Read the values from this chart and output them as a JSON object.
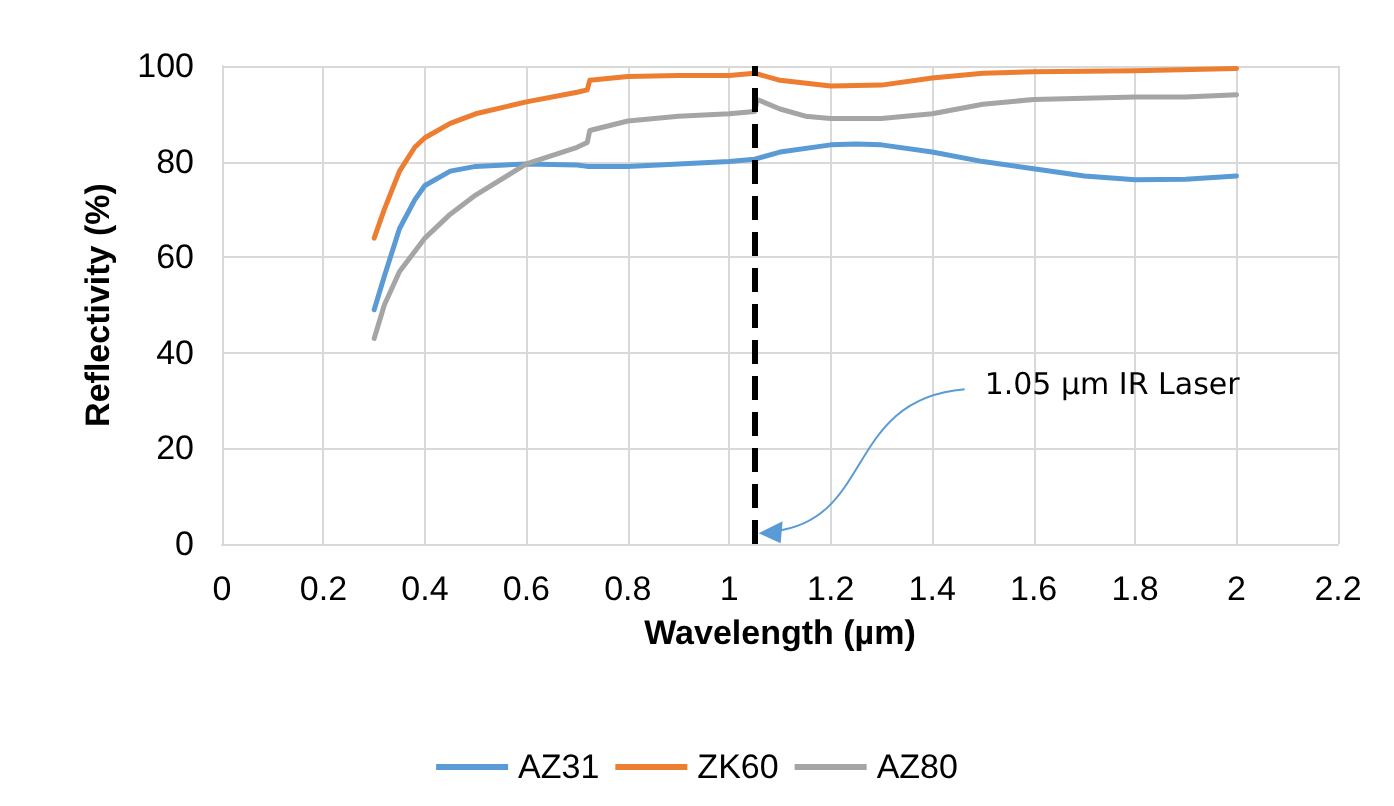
{
  "chart_data": {
    "type": "line",
    "xlabel": "Wavelength (µm)",
    "ylabel": "Reflectivity (%)",
    "xlim": [
      0,
      2.2
    ],
    "xticks": [
      0,
      0.2,
      0.4,
      0.6,
      0.8,
      1,
      1.2,
      1.4,
      1.6,
      1.8,
      2,
      2.2
    ],
    "ylim": [
      0,
      100
    ],
    "yticks": [
      0,
      20,
      40,
      60,
      80,
      100
    ],
    "grid": true,
    "legend": "bottom",
    "marker": "none",
    "line_style": "solid",
    "series": [
      {
        "name": "AZ31",
        "color": "#5b9bd5",
        "x": [
          0.3,
          0.32,
          0.35,
          0.38,
          0.4,
          0.45,
          0.5,
          0.6,
          0.7,
          0.72,
          0.8,
          0.9,
          1.0,
          1.05,
          1.1,
          1.2,
          1.25,
          1.3,
          1.4,
          1.5,
          1.6,
          1.7,
          1.8,
          1.9,
          2.0
        ],
        "values": [
          49,
          56,
          66,
          72,
          75,
          78,
          79,
          79.5,
          79.3,
          79,
          79,
          79.5,
          80,
          80.5,
          82,
          83.5,
          83.7,
          83.5,
          82,
          80,
          78.5,
          77,
          76.2,
          76.3,
          77
        ]
      },
      {
        "name": "ZK60",
        "color": "#ed7d31",
        "x": [
          0.3,
          0.32,
          0.35,
          0.38,
          0.4,
          0.45,
          0.5,
          0.6,
          0.7,
          0.72,
          0.725,
          0.8,
          0.9,
          1.0,
          1.05,
          1.1,
          1.2,
          1.3,
          1.4,
          1.5,
          1.6,
          1.8,
          2.0
        ],
        "values": [
          64,
          70,
          78,
          83,
          85,
          88,
          90,
          92.5,
          94.5,
          95,
          97,
          97.8,
          98,
          98,
          98.5,
          97,
          95.8,
          96,
          97.5,
          98.5,
          98.8,
          99,
          99.5
        ]
      },
      {
        "name": "AZ80",
        "color": "#a5a5a5",
        "x": [
          0.3,
          0.32,
          0.35,
          0.4,
          0.45,
          0.5,
          0.6,
          0.7,
          0.72,
          0.725,
          0.8,
          0.9,
          1.0,
          1.05,
          1.055,
          1.1,
          1.15,
          1.2,
          1.3,
          1.4,
          1.5,
          1.6,
          1.8,
          1.9,
          2.0
        ],
        "values": [
          43,
          50,
          57,
          64,
          69,
          73,
          79.5,
          83,
          84,
          86.5,
          88.5,
          89.5,
          90,
          90.5,
          93,
          91,
          89.5,
          89,
          89,
          90,
          92,
          93,
          93.5,
          93.5,
          94
        ]
      }
    ],
    "ref_lines": [
      {
        "axis": "x",
        "value": 1.05,
        "color": "#000000",
        "line_style": "dashed"
      }
    ],
    "annotations": [
      "1.05 µm IR Laser"
    ]
  }
}
